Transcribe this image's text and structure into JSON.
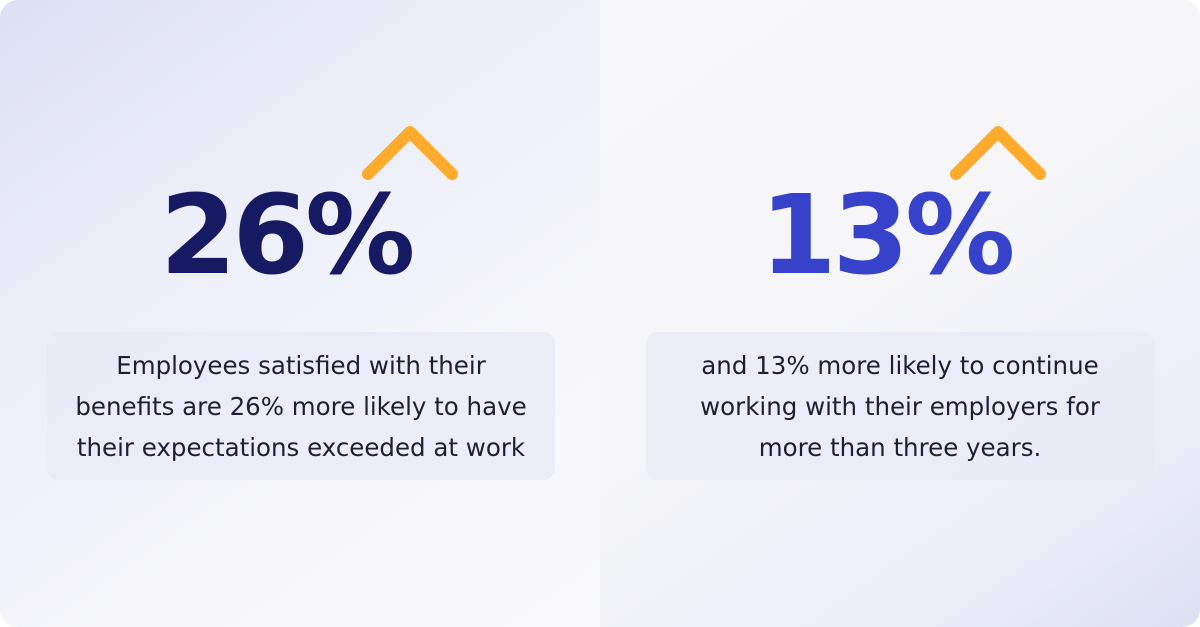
{
  "colors": {
    "stat_left": "#151a63",
    "stat_right": "#3542c9",
    "arrow_top": "#ffab2e",
    "arrow_fade": "#f3f4fa"
  },
  "stats": [
    {
      "value": "26%",
      "icon": "arrow-up-icon",
      "caption_lines": [
        "Employees satisfied with their",
        "benefits are 26% more likely to have",
        "their expectations exceeded at work"
      ]
    },
    {
      "value": "13%",
      "icon": "arrow-up-icon",
      "caption_lines": [
        "and 13% more likely to continue",
        "working with their employers for",
        "more than three years."
      ]
    }
  ]
}
